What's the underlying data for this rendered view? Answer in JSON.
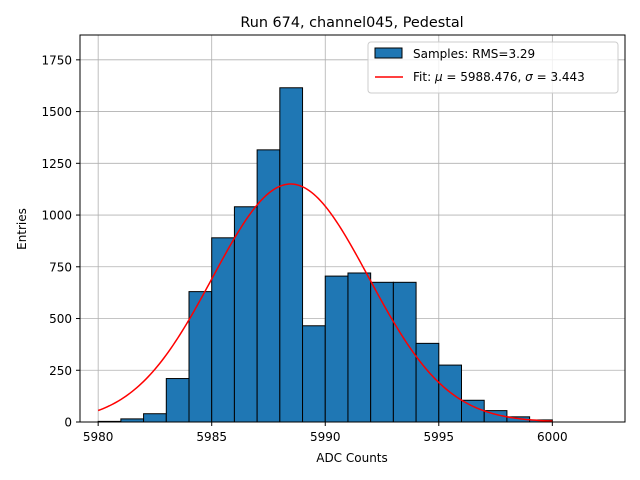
{
  "chart_data": {
    "type": "bar",
    "title": "Run 674, channel045, Pedestal",
    "xlabel": "ADC Counts",
    "ylabel": "Entries",
    "xlim": [
      5979.2,
      6003.2
    ],
    "ylim": [
      0,
      1870
    ],
    "xticks": [
      5980,
      5985,
      5990,
      5995,
      6000
    ],
    "yticks": [
      0,
      250,
      500,
      750,
      1000,
      1250,
      1500,
      1750
    ],
    "grid": true,
    "legend_position": "top-right",
    "bins": {
      "edges": [
        5980,
        5981,
        5982,
        5983,
        5984,
        5985,
        5986,
        5987,
        5988,
        5989,
        5990,
        5991,
        5992,
        5993,
        5994,
        5995,
        5996,
        5997,
        5998,
        5999,
        6000,
        6001,
        6002
      ],
      "counts": [
        3,
        15,
        40,
        210,
        630,
        890,
        1040,
        1315,
        1615,
        465,
        705,
        720,
        675,
        675,
        380,
        275,
        105,
        55,
        25,
        10,
        0,
        0
      ]
    },
    "series": [
      {
        "name": "Samples: RMS=3.29",
        "kind": "histogram",
        "color": "#1f77b4",
        "edgecolor": "#000000"
      },
      {
        "name": "Fit: μ = 5988.476, σ = 3.443",
        "kind": "gaussian",
        "color": "#ff0000",
        "mu": 5988.476,
        "sigma": 3.443,
        "amplitude": 1150,
        "x_range": [
          5980,
          6000
        ]
      }
    ],
    "legend": {
      "hist_label": "Samples: RMS=3.29",
      "fit_prefix": "Fit: ",
      "fit_mu_symbol": "μ",
      "fit_mu_value": " = 5988.476, ",
      "fit_sigma_symbol": "σ",
      "fit_sigma_value": " = 3.443"
    }
  }
}
